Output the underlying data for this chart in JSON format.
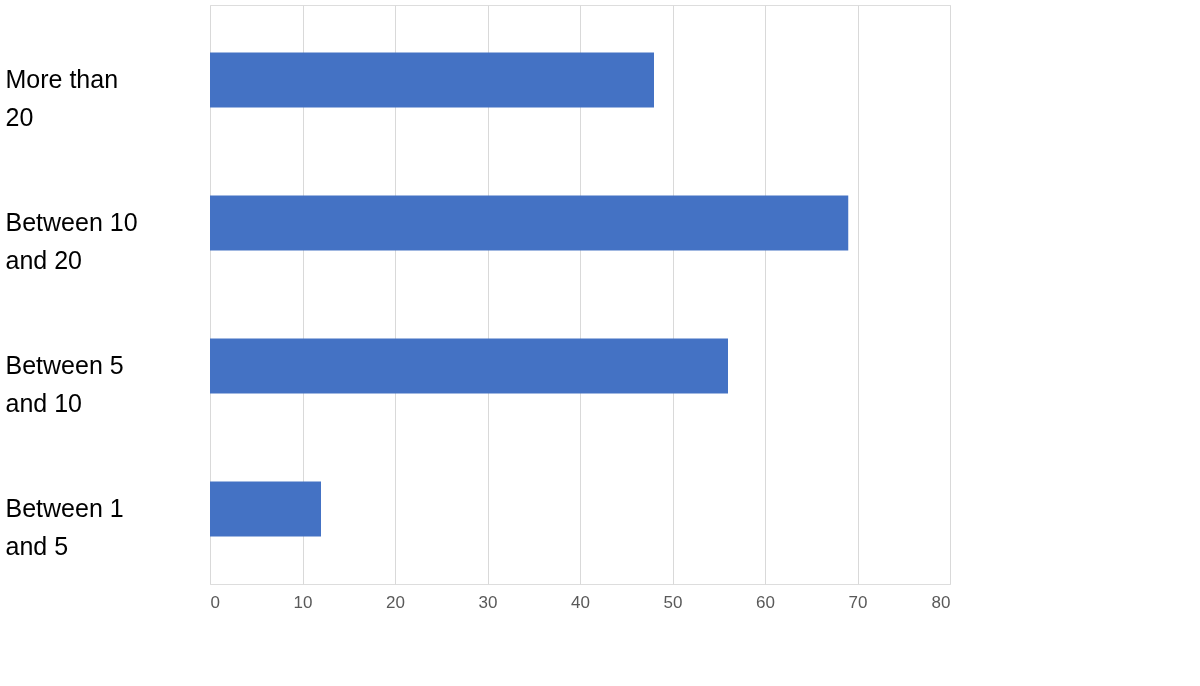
{
  "chart_data": {
    "type": "bar",
    "orientation": "horizontal",
    "categories": [
      "More than 20",
      "Between 10 and 20",
      "Between 5 and 10",
      "Between 1 and 5"
    ],
    "values": [
      48,
      69,
      56,
      12
    ],
    "color": "#4472c4",
    "xlim": [
      0,
      80
    ],
    "xticks": [
      0,
      10,
      20,
      30,
      40,
      50,
      60,
      70,
      80
    ],
    "grid": "x"
  }
}
